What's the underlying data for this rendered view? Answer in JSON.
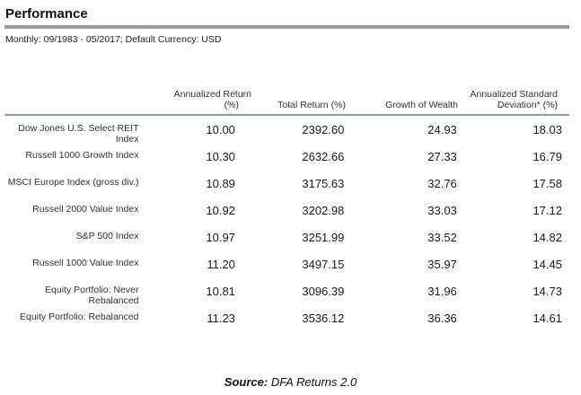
{
  "header": {
    "title": "Performance",
    "subtitle": "Monthly: 09/1983 - 05/2017; Default Currency: USD"
  },
  "table": {
    "columns": [
      "Annualized Return (%)",
      "Total Return (%)",
      "Growth of Wealth",
      "Annualized Standard Deviation* (%)"
    ],
    "column_lines": [
      [
        "Annualized Return",
        "(%)"
      ],
      [
        "Total Return (%)"
      ],
      [
        "Growth of Wealth"
      ],
      [
        "Annualized Standard",
        "Deviation* (%)"
      ]
    ],
    "rows": [
      {
        "name_lines": [
          "Dow Jones U.S. Select REIT",
          "Index"
        ],
        "ann": "10.00",
        "tot": "2392.60",
        "gw": "24.93",
        "sd": "18.03"
      },
      {
        "name_lines": [
          "Russell 1000 Growth Index"
        ],
        "ann": "10.30",
        "tot": "2632.66",
        "gw": "27.33",
        "sd": "16.79"
      },
      {
        "name_lines": [
          "MSCI Europe Index (gross div.)"
        ],
        "ann": "10.89",
        "tot": "3175.63",
        "gw": "32.76",
        "sd": "17.58"
      },
      {
        "name_lines": [
          "Russell 2000 Value Index"
        ],
        "ann": "10.92",
        "tot": "3202.98",
        "gw": "33.03",
        "sd": "17.12"
      },
      {
        "name_lines": [
          "S&P 500 Index"
        ],
        "ann": "10.97",
        "tot": "3251.99",
        "gw": "33.52",
        "sd": "14.82"
      },
      {
        "name_lines": [
          "Russell 1000 Value Index"
        ],
        "ann": "11.20",
        "tot": "3497.15",
        "gw": "35.97",
        "sd": "14.45"
      },
      {
        "name_lines": [
          "Equity Portfolio: Never",
          "Rebalanced"
        ],
        "ann": "10.81",
        "tot": "3096.39",
        "gw": "31.96",
        "sd": "14.73"
      },
      {
        "name_lines": [
          "Equity Portfolio:  Rebalanced"
        ],
        "ann": "11.23",
        "tot": "3536.12",
        "gw": "36.36",
        "sd": "14.61"
      }
    ]
  },
  "footer": {
    "source_label": "Source:",
    "source_value": " DFA Returns 2.0"
  }
}
